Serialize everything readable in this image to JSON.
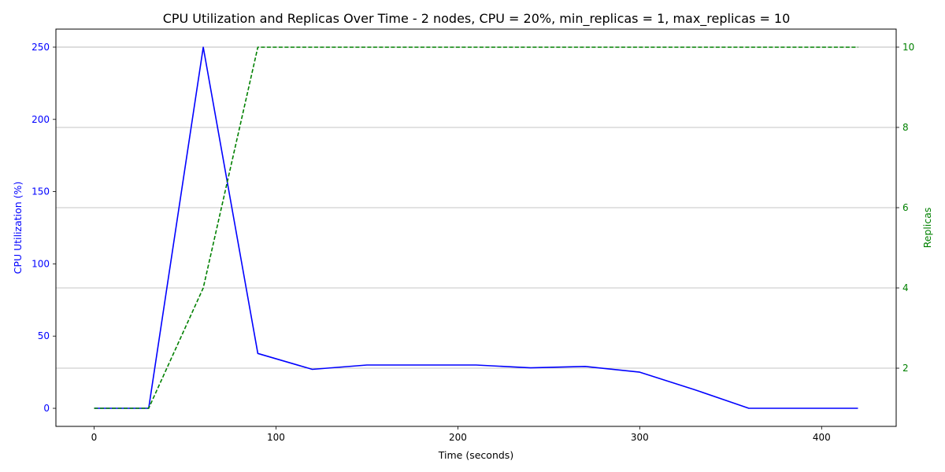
{
  "chart_data": {
    "type": "line",
    "title": "CPU Utilization and Replicas Over Time - 2 nodes, CPU = 20%, min_replicas = 1, max_replicas = 10",
    "xlabel": "Time (seconds)",
    "ylabel_left": "CPU Utilization (%)",
    "ylabel_right": "Replicas",
    "xlim": [
      -21,
      441
    ],
    "ylim_left": [
      -12.5,
      262.5
    ],
    "ylim_right": [
      0.55,
      10.45
    ],
    "x_ticks": [
      0,
      100,
      200,
      300,
      400
    ],
    "y_left_ticks": [
      0,
      50,
      100,
      150,
      200,
      250
    ],
    "y_right_ticks": [
      2,
      4,
      6,
      8,
      10
    ],
    "grid": "horizontal-right-axis",
    "colors": {
      "cpu": "#0000ff",
      "replicas": "#008000",
      "grid": "#b0b0b0",
      "axes": "#000000"
    },
    "series": [
      {
        "key": "cpu",
        "axis": "left",
        "style": "solid",
        "x": [
          0,
          30,
          60,
          90,
          120,
          150,
          180,
          210,
          240,
          270,
          300,
          330,
          360,
          390,
          420
        ],
        "values": [
          0,
          0,
          250,
          38,
          27,
          30,
          30,
          30,
          28,
          29,
          25,
          13,
          0,
          0,
          0
        ]
      },
      {
        "key": "replicas",
        "axis": "right",
        "style": "dashed",
        "x": [
          0,
          30,
          60,
          90,
          120,
          150,
          180,
          210,
          240,
          270,
          300,
          330,
          360,
          390,
          420
        ],
        "values": [
          1,
          1,
          4,
          10,
          10,
          10,
          10,
          10,
          10,
          10,
          10,
          10,
          10,
          10,
          10
        ]
      }
    ]
  }
}
